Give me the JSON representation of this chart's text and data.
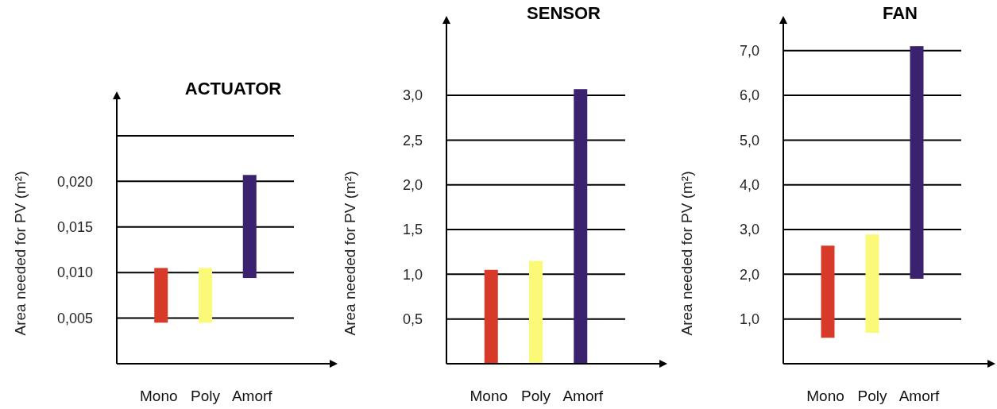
{
  "chart_data": [
    {
      "type": "bar",
      "title": "ACTUATOR",
      "ylabel": "Area needed for PV (m²)",
      "categories": [
        "Mono",
        "Poly",
        "Amorf"
      ],
      "values": [
        0.006,
        0.006,
        0.0113
      ],
      "base": [
        0.0045,
        0.0045,
        0.0094
      ],
      "colors": [
        "#d83a2a",
        "#fafa78",
        "#3b226e"
      ],
      "ylim": [
        0,
        0.029
      ],
      "yticks": [
        {
          "value": 0.005,
          "label": "0,005"
        },
        {
          "value": 0.01,
          "label": "0,010"
        },
        {
          "value": 0.015,
          "label": "0,015"
        },
        {
          "value": 0.02,
          "label": "0,020"
        },
        {
          "value": 0.025,
          "label": null
        }
      ],
      "grid": "y"
    },
    {
      "type": "bar",
      "title": "SENSOR",
      "ylabel": "Area needed for PV (m²)",
      "categories": [
        "Mono",
        "Poly",
        "Amorf"
      ],
      "values": [
        1.05,
        1.15,
        3.07
      ],
      "colors": [
        "#d83a2a",
        "#fafa78",
        "#3b226e"
      ],
      "ylim": [
        0,
        3.8
      ],
      "yticks": [
        {
          "value": 0.5,
          "label": "0,5"
        },
        {
          "value": 1,
          "label": "1,0"
        },
        {
          "value": 1.5,
          "label": "1,5"
        },
        {
          "value": 2,
          "label": "2,0"
        },
        {
          "value": 2.5,
          "label": "2,5"
        },
        {
          "value": 3,
          "label": "3,0"
        }
      ],
      "grid": "y"
    },
    {
      "type": "bar",
      "title": "FAN",
      "ylabel": "Area needed for PV (m²)",
      "categories": [
        "Mono",
        "Poly",
        "Amorf"
      ],
      "values": [
        2.06,
        2.2,
        5.2
      ],
      "base": [
        0.58,
        0.69,
        1.9
      ],
      "colors": [
        "#d83a2a",
        "#fafa78",
        "#3b226e"
      ],
      "ylim": [
        0,
        7.6
      ],
      "yticks": [
        {
          "value": 1,
          "label": "1,0"
        },
        {
          "value": 2,
          "label": "2,0"
        },
        {
          "value": 3,
          "label": "3,0"
        },
        {
          "value": 4,
          "label": "4,0"
        },
        {
          "value": 5,
          "label": "5,0"
        },
        {
          "value": 6,
          "label": "6,0"
        },
        {
          "value": 7,
          "label": "7,0"
        }
      ],
      "grid": "y"
    }
  ]
}
